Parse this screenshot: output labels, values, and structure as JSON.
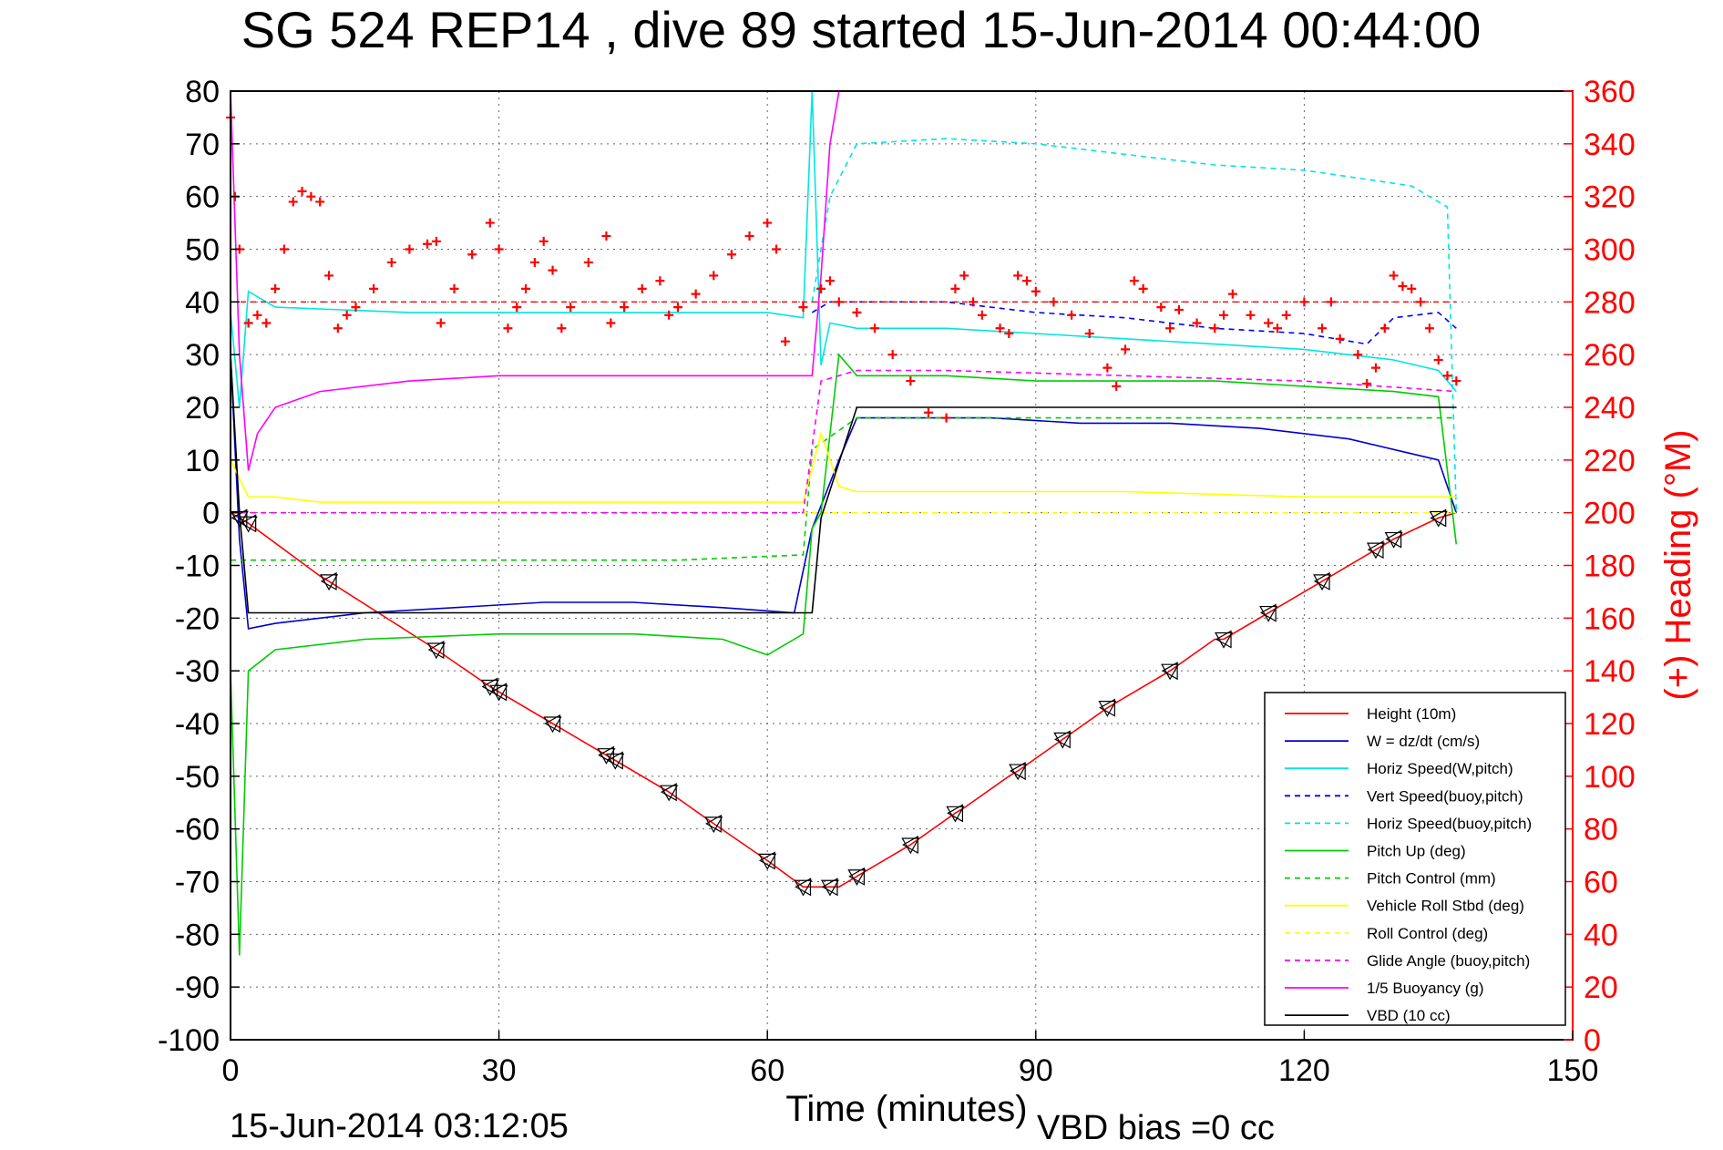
{
  "chart_data": {
    "type": "line",
    "title": "SG 524   REP14  , dive 89 started 15-Jun-2014 00:44:00",
    "xlabel": "Time (minutes)",
    "ylabel_right": "(+) Heading (°M)",
    "xlim": [
      0,
      150
    ],
    "ylim": [
      -100,
      80
    ],
    "ylim_right": [
      0,
      360
    ],
    "x_ticks": [
      0,
      30,
      60,
      90,
      120,
      150
    ],
    "y_ticks": [
      80,
      70,
      60,
      50,
      40,
      30,
      20,
      10,
      0,
      -10,
      -20,
      -30,
      -40,
      -50,
      -60,
      -70,
      -80,
      -90,
      -100
    ],
    "y_ticks_right": [
      360,
      340,
      320,
      300,
      280,
      260,
      240,
      220,
      200,
      180,
      160,
      140,
      120,
      100,
      80,
      60,
      40,
      20,
      0
    ],
    "grid": true,
    "legend_position": "bottom-right",
    "footer_left": "15-Jun-2014 03:12:05",
    "footer_right": "VBD bias =0 cc",
    "colors": {
      "height": "#ff0000",
      "w": "#0000cc",
      "horiz_speed": "#00e5e5",
      "pitch": "#00cc00",
      "roll": "#ffff00",
      "glide": "#ff00ff",
      "buoyancy": "#ff00ff",
      "vbd": "#000000",
      "heading": "#ff0000"
    },
    "series": [
      {
        "name": "Height (10m)",
        "color": "#ff0000",
        "dash": "none",
        "x": [
          0,
          1,
          2,
          10,
          11,
          23,
          29,
          30,
          36,
          42,
          43,
          49,
          54,
          60,
          64,
          67,
          68,
          70,
          76,
          81,
          82,
          87,
          88,
          93,
          98,
          99,
          104,
          105,
          110,
          111,
          116,
          117,
          122,
          123,
          128,
          130,
          135,
          137
        ],
        "y": [
          0,
          -1,
          -2,
          -12,
          -13,
          -26,
          -33,
          -34,
          -40,
          -46,
          -47,
          -53,
          -59,
          -66,
          -71,
          -71,
          -71,
          -69,
          -63,
          -57,
          -56,
          -50,
          -49,
          -43,
          -37,
          -36,
          -31,
          -30,
          -24,
          -24,
          -19,
          -18,
          -13,
          -12,
          -7,
          -5,
          -1,
          0
        ]
      },
      {
        "name": "W = dz/dt (cm/s)",
        "color": "#0000cc",
        "dash": "none",
        "x": [
          0,
          1,
          2,
          5,
          15,
          25,
          35,
          45,
          55,
          63,
          65,
          68,
          70,
          75,
          85,
          95,
          105,
          115,
          125,
          130,
          135,
          137
        ],
        "y": [
          30,
          -5,
          -22,
          -21,
          -19,
          -18,
          -17,
          -17,
          -18,
          -19,
          -3,
          10,
          18,
          18,
          18,
          17,
          17,
          16,
          14,
          12,
          10,
          0
        ]
      },
      {
        "name": "Horiz Speed(W,pitch)",
        "color": "#00e5e5",
        "dash": "none",
        "x": [
          0,
          1,
          2,
          5,
          20,
          40,
          60,
          64,
          65,
          66,
          67,
          70,
          80,
          90,
          100,
          110,
          120,
          130,
          135,
          137
        ],
        "y": [
          38,
          20,
          42,
          39,
          38,
          38,
          38,
          37,
          80,
          28,
          36,
          35,
          35,
          34,
          33,
          32,
          31,
          29,
          27,
          23
        ]
      },
      {
        "name": "Vert Speed(buoy,pitch)",
        "color": "#0000ff",
        "dash": "6,5",
        "x": [
          65,
          67,
          70,
          80,
          90,
          100,
          110,
          120,
          127,
          130,
          135,
          137
        ],
        "y": [
          38,
          40,
          40,
          40,
          38,
          37,
          35,
          34,
          32,
          37,
          38,
          35
        ]
      },
      {
        "name": "Horiz Speed(buoy,pitch)",
        "color": "#00e5e5",
        "dash": "6,5",
        "x": [
          65,
          67,
          70,
          80,
          90,
          100,
          110,
          120,
          128,
          132,
          136,
          137
        ],
        "y": [
          40,
          60,
          70,
          71,
          70,
          68,
          66,
          65,
          63,
          62,
          58,
          0
        ]
      },
      {
        "name": "Pitch Up (deg)",
        "color": "#00cc00",
        "dash": "none",
        "x": [
          0,
          1,
          2,
          5,
          15,
          30,
          45,
          55,
          60,
          64,
          65,
          66,
          68,
          70,
          80,
          90,
          100,
          110,
          120,
          130,
          135,
          137
        ],
        "y": [
          -30,
          -84,
          -30,
          -26,
          -24,
          -23,
          -23,
          -24,
          -27,
          -23,
          -3,
          0,
          30,
          26,
          26,
          25,
          25,
          25,
          24,
          23,
          22,
          -6
        ]
      },
      {
        "name": "Pitch Control (mm)",
        "color": "#00cc00",
        "dash": "6,5",
        "x": [
          0,
          10,
          30,
          50,
          64,
          65,
          70,
          80,
          100,
          120,
          137
        ],
        "y": [
          -9,
          -9,
          -9,
          -9,
          -8,
          12,
          18,
          18,
          18,
          18,
          18
        ]
      },
      {
        "name": "Vehicle Roll Stbd (deg)",
        "color": "#ffff00",
        "dash": "none",
        "x": [
          0,
          2,
          5,
          10,
          30,
          50,
          64,
          66,
          68,
          70,
          80,
          100,
          120,
          137
        ],
        "y": [
          10,
          3,
          3,
          2,
          2,
          2,
          2,
          15,
          5,
          4,
          4,
          4,
          3,
          3
        ]
      },
      {
        "name": "Roll Control (deg)",
        "color": "#ffff00",
        "dash": "6,5",
        "x": [
          0,
          10,
          30,
          50,
          64,
          66,
          70,
          90,
          110,
          137
        ],
        "y": [
          0,
          0,
          0,
          0,
          0,
          0,
          0,
          0,
          0,
          0
        ]
      },
      {
        "name": "Glide Angle (buoy,pitch)",
        "color": "#ff00ff",
        "dash": "6,5",
        "x": [
          0,
          10,
          30,
          50,
          64,
          66,
          70,
          80,
          100,
          120,
          137
        ],
        "y": [
          0,
          0,
          0,
          0,
          0,
          25,
          27,
          27,
          26,
          25,
          23
        ]
      },
      {
        "name": "1/5 Buoyancy (g)",
        "color": "#ff00ff",
        "dash": "none",
        "x": [
          0,
          1,
          2,
          3,
          5,
          10,
          20,
          30,
          40,
          50,
          60,
          65,
          66,
          67,
          68
        ],
        "y": [
          80,
          30,
          8,
          15,
          20,
          23,
          25,
          26,
          26,
          26,
          26,
          26,
          45,
          70,
          80
        ]
      },
      {
        "name": "VBD (10 cc)",
        "color": "#000000",
        "dash": "none",
        "x": [
          0,
          1,
          2,
          10,
          30,
          50,
          64,
          65,
          66,
          70,
          80,
          100,
          120,
          137
        ],
        "y": [
          30,
          0,
          -19,
          -19,
          -19,
          -19,
          -19,
          -19,
          -1,
          20,
          20,
          20,
          20,
          20
        ]
      }
    ],
    "heading": {
      "name": "(+) Heading (°M)",
      "color": "#ff0000",
      "marker": "+",
      "target": 280,
      "x": [
        0,
        0.5,
        1,
        2,
        3,
        4,
        5,
        6,
        7,
        8,
        9,
        10,
        11,
        12,
        13,
        14,
        16,
        18,
        20,
        22,
        23,
        23.5,
        25,
        27,
        29,
        30,
        31,
        32,
        33,
        34,
        35,
        36,
        37,
        38,
        40,
        42,
        42.5,
        44,
        46,
        48,
        49,
        50,
        52,
        54,
        56,
        58,
        60,
        61,
        62,
        64,
        66,
        67,
        68,
        70,
        72,
        74,
        76,
        78,
        80,
        81,
        82,
        83,
        84,
        86,
        87,
        88,
        89,
        90,
        92,
        94,
        96,
        98,
        99,
        100,
        101,
        102,
        104,
        105,
        106,
        108,
        110,
        111,
        112,
        114,
        116,
        117,
        118,
        120,
        122,
        123,
        124,
        126,
        127,
        128,
        129,
        130,
        131,
        132,
        133,
        134,
        135,
        136,
        137
      ],
      "y": [
        350,
        320,
        300,
        272,
        275,
        272,
        285,
        300,
        318,
        322,
        320,
        318,
        290,
        270,
        275,
        278,
        285,
        295,
        300,
        302,
        303,
        272,
        285,
        298,
        310,
        300,
        270,
        278,
        285,
        295,
        303,
        292,
        270,
        278,
        295,
        305,
        272,
        278,
        285,
        288,
        275,
        278,
        283,
        290,
        298,
        305,
        310,
        300,
        265,
        278,
        285,
        288,
        280,
        276,
        270,
        260,
        250,
        238,
        236,
        285,
        290,
        280,
        275,
        270,
        268,
        290,
        288,
        284,
        280,
        275,
        268,
        255,
        248,
        262,
        288,
        285,
        278,
        270,
        277,
        272,
        270,
        275,
        283,
        275,
        272,
        270,
        275,
        280,
        270,
        280,
        266,
        260,
        249,
        255,
        270,
        290,
        286,
        285,
        280,
        270,
        258,
        252,
        250
      ]
    },
    "markers": {
      "triangle_x": [
        1,
        2,
        11,
        23,
        29,
        30,
        36,
        42,
        43,
        49,
        54,
        60,
        64,
        67,
        70,
        76,
        81,
        88,
        93,
        98,
        105,
        111,
        116,
        122,
        128,
        130,
        135
      ],
      "triangle_y": [
        -1,
        -2,
        -13,
        -26,
        -33,
        -34,
        -40,
        -46,
        -47,
        -53,
        -59,
        -66,
        -71,
        -71,
        -69,
        -63,
        -57,
        -49,
        -43,
        -37,
        -30,
        -24,
        -19,
        -13,
        -7,
        -5,
        -1
      ]
    }
  }
}
